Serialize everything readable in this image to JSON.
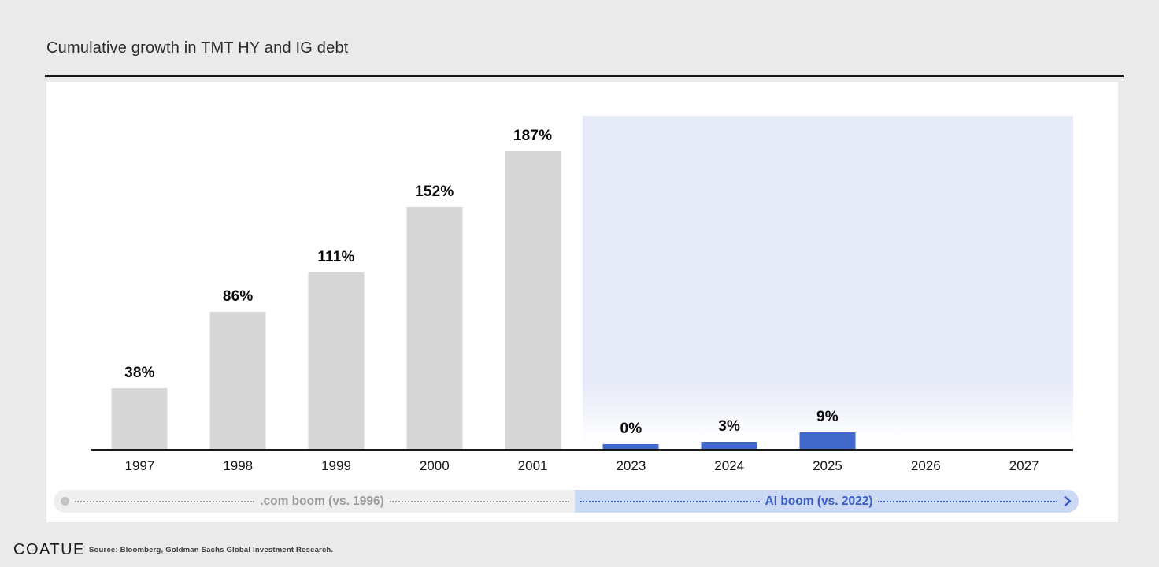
{
  "header": {
    "title": "Cumulative growth in TMT HY and IG debt"
  },
  "footer": {
    "logo": "COATUE",
    "source": "Source: Bloomberg, Goldman Sachs Global Investment Research."
  },
  "colors": {
    "dotcom_bar": "#d7d7d7",
    "ai_bar": "#4168cb",
    "highlight_region": "#e7ebf8",
    "dotcom_accent": "#9b9b9b",
    "ai_accent": "#3a5cc5"
  },
  "icons": {
    "timeline_start": "circle-outline-icon",
    "ai_band_end": "arrow-right-icon"
  },
  "chart_data": {
    "type": "bar",
    "title": "Cumulative growth in TMT HY and IG debt",
    "x_categories": [
      "1997",
      "1998",
      "1999",
      "2000",
      "2001",
      "2023",
      "2024",
      "2025",
      "2026",
      "2027"
    ],
    "series": [
      {
        "name": ".com boom (vs. 1996)",
        "color": "#d7d7d7",
        "points": [
          {
            "x": "1997",
            "y": 38,
            "label": "38%"
          },
          {
            "x": "1998",
            "y": 86,
            "label": "86%"
          },
          {
            "x": "1999",
            "y": 111,
            "label": "111%"
          },
          {
            "x": "2000",
            "y": 152,
            "label": "152%"
          },
          {
            "x": "2001",
            "y": 187,
            "label": "187%"
          }
        ]
      },
      {
        "name": "AI boom (vs. 2022)",
        "color": "#4168cb",
        "points": [
          {
            "x": "2023",
            "y": 0,
            "label": "0%"
          },
          {
            "x": "2024",
            "y": 3,
            "label": "3%"
          },
          {
            "x": "2025",
            "y": 9,
            "label": "9%"
          }
        ]
      }
    ],
    "ylim": [
      0,
      230
    ],
    "grid": false,
    "value_labels": true,
    "legend_position": "bottom-bands",
    "annotations": {
      "dotcom_label": ".com boom (vs. 1996)",
      "ai_label": "AI boom (vs. 2022)",
      "highlight_region_over": [
        "2023",
        "2024",
        "2025",
        "2026",
        "2027"
      ]
    }
  }
}
